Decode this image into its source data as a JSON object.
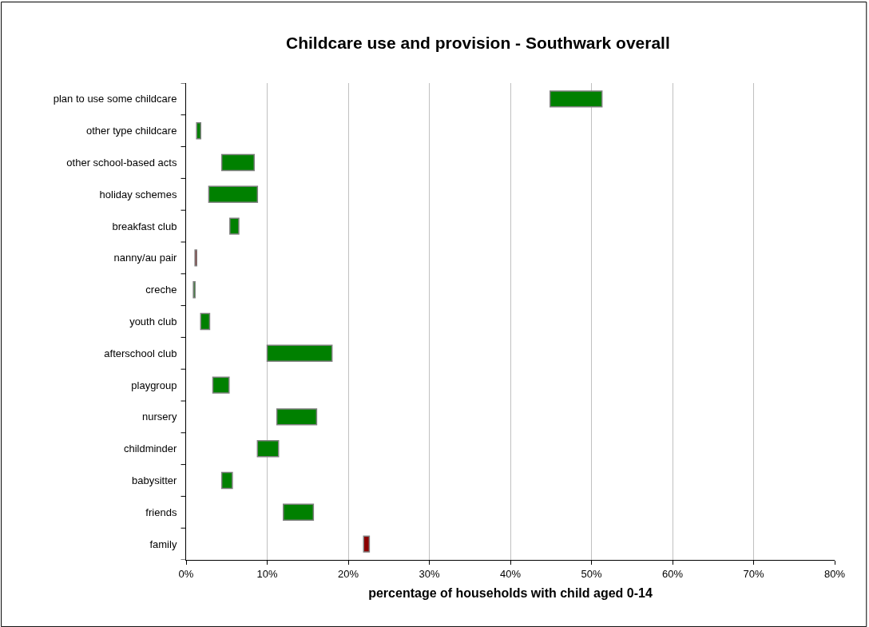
{
  "chart_data": {
    "type": "bar",
    "orientation": "horizontal",
    "title": "Childcare use and provision - Southwark overall",
    "xlabel": "percentage of households with child aged 0-14",
    "categories": [
      "plan to use some childcare",
      "other type childcare",
      "other school-based acts",
      "holiday schemes",
      "breakfast club",
      "nanny/au pair",
      "creche",
      "youth club",
      "afterschool club",
      "playgroup",
      "nursery",
      "childminder",
      "babysitter",
      "friends",
      "family"
    ],
    "base": [
      44.9,
      1.3,
      4.4,
      2.8,
      5.4,
      1.1,
      0.9,
      1.8,
      10.0,
      3.3,
      11.2,
      8.8,
      4.4,
      12.0,
      21.9
    ],
    "values": [
      6.4,
      0.5,
      4.0,
      6.0,
      1.1,
      0.2,
      0.2,
      1.1,
      8.0,
      2.0,
      4.9,
      2.6,
      1.3,
      3.7,
      0.7
    ],
    "colors": [
      "#008000",
      "#008000",
      "#008000",
      "#008000",
      "#008000",
      "#8b0000",
      "#008000",
      "#008000",
      "#008000",
      "#008000",
      "#008000",
      "#008000",
      "#008000",
      "#008000",
      "#8b0000"
    ],
    "xlim": [
      0,
      80
    ],
    "xticks": [
      {
        "value": 0,
        "label": "0%"
      },
      {
        "value": 10,
        "label": "10%"
      },
      {
        "value": 20,
        "label": "20%"
      },
      {
        "value": 30,
        "label": "30%"
      },
      {
        "value": 40,
        "label": "40%"
      },
      {
        "value": 50,
        "label": "50%"
      },
      {
        "value": 60,
        "label": "60%"
      },
      {
        "value": 70,
        "label": "70%"
      },
      {
        "value": 80,
        "label": "80%"
      }
    ],
    "grid": "x"
  }
}
